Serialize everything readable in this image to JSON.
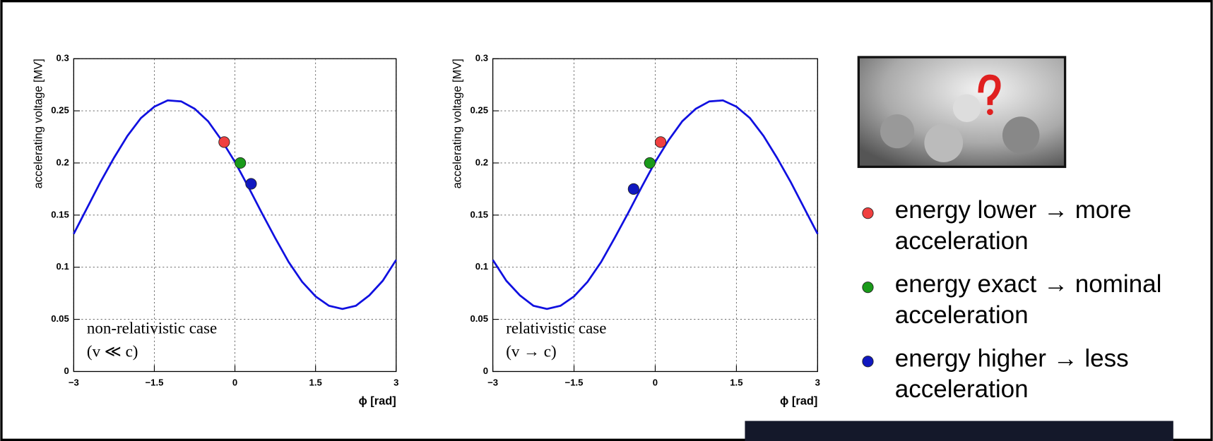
{
  "chart_data": [
    {
      "type": "line",
      "ylabel": "accelerating voltage [MV]",
      "xlabel": "ϕ [rad]",
      "annotations": [
        "non-relativistic case",
        "(v ≪ c)"
      ],
      "xlim": [
        -3,
        3
      ],
      "ylim": [
        0,
        0.3
      ],
      "grid": true,
      "xticks": [
        {
          "value": -3,
          "label": "−3"
        },
        {
          "value": -1.5,
          "label": "−1.5"
        },
        0,
        1.5,
        3
      ],
      "yticks": [
        0,
        0.05,
        0.1,
        0.15,
        0.2,
        0.25,
        0.3
      ],
      "line": {
        "color": "#1010e0",
        "x": [
          -3,
          -2.75,
          -2.5,
          -2.25,
          -2,
          -1.75,
          -1.5,
          -1.25,
          -1,
          -0.75,
          -0.5,
          -0.25,
          0,
          0.25,
          0.5,
          0.75,
          1,
          1.25,
          1.5,
          1.75,
          2,
          2.25,
          2.5,
          2.75,
          3
        ],
        "values": [
          0.132,
          0.157,
          0.182,
          0.205,
          0.226,
          0.243,
          0.254,
          0.26,
          0.259,
          0.252,
          0.24,
          0.222,
          0.201,
          0.177,
          0.152,
          0.128,
          0.105,
          0.086,
          0.072,
          0.063,
          0.06,
          0.063,
          0.073,
          0.087,
          0.107
        ]
      },
      "points": [
        {
          "x": -0.2,
          "y": 0.22,
          "color": "#f04040"
        },
        {
          "x": 0.1,
          "y": 0.2,
          "color": "#1a9a1a"
        },
        {
          "x": 0.3,
          "y": 0.18,
          "color": "#1018c0"
        }
      ]
    },
    {
      "type": "line",
      "ylabel": "accelerating voltage [MV]",
      "xlabel": "ϕ [rad]",
      "annotations": [
        "relativistic case",
        "(v → c)"
      ],
      "xlim": [
        -3,
        3
      ],
      "ylim": [
        0,
        0.3
      ],
      "grid": true,
      "xticks": [
        {
          "value": -3,
          "label": "−3"
        },
        {
          "value": -1.5,
          "label": "−1.5"
        },
        0,
        1.5,
        3
      ],
      "yticks": [
        0,
        0.05,
        0.1,
        0.15,
        0.2,
        0.25,
        0.3
      ],
      "line": {
        "color": "#1010e0",
        "x": [
          -3,
          -2.75,
          -2.5,
          -2.25,
          -2,
          -1.75,
          -1.5,
          -1.25,
          -1,
          -0.75,
          -0.5,
          -0.25,
          0,
          0.25,
          0.5,
          0.75,
          1,
          1.25,
          1.5,
          1.75,
          2,
          2.25,
          2.5,
          2.75,
          3
        ],
        "values": [
          0.107,
          0.087,
          0.073,
          0.063,
          0.06,
          0.063,
          0.072,
          0.086,
          0.105,
          0.128,
          0.152,
          0.177,
          0.201,
          0.222,
          0.24,
          0.252,
          0.259,
          0.26,
          0.254,
          0.243,
          0.226,
          0.205,
          0.182,
          0.157,
          0.132
        ]
      },
      "points": [
        {
          "x": 0.1,
          "y": 0.22,
          "color": "#f04040"
        },
        {
          "x": -0.1,
          "y": 0.2,
          "color": "#1a9a1a"
        },
        {
          "x": -0.4,
          "y": 0.175,
          "color": "#1018c0"
        }
      ]
    }
  ],
  "bullets": [
    {
      "lines": [
        "energy lower  → more",
        "acceleration"
      ],
      "color": "#f04040"
    },
    {
      "lines": [
        "energy exact  → nominal",
        "acceleration"
      ],
      "color": "#1a9a1a"
    },
    {
      "lines": [
        "energy higher → less",
        "acceleration"
      ],
      "color": "#1018c0"
    }
  ]
}
